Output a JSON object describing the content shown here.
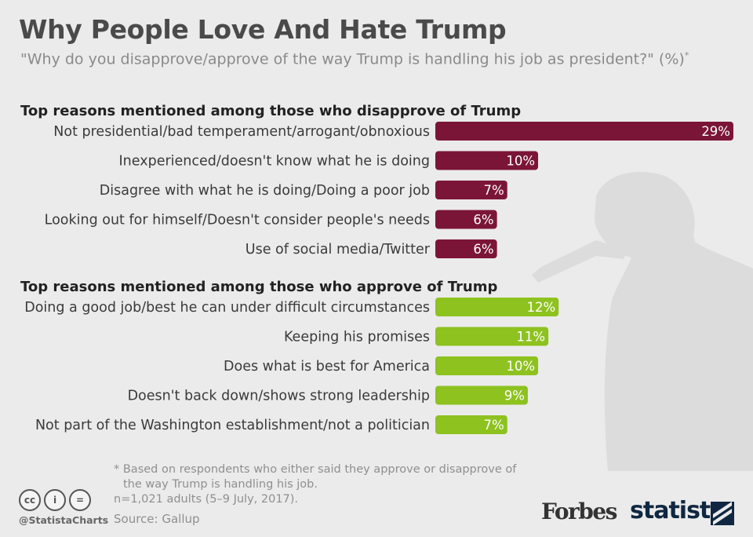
{
  "header": {
    "title": "Why People Love And Hate Trump",
    "subtitle": "\"Why do you disapprove/approve of the way Trump is handling his job as president?\" (%)",
    "subtitle_mark": "*"
  },
  "chart_data": {
    "type": "bar",
    "orientation": "horizontal",
    "unit": "%",
    "xlim": [
      0,
      29
    ],
    "grid": false,
    "groups": [
      {
        "title": "Top reasons mentioned among those who disapprove of Trump",
        "color": "#7b1538",
        "categories": [
          "Not presidential/bad temperament/arrogant/obnoxious",
          "Inexperienced/doesn't know what he is doing",
          "Disagree with what he is doing/Doing a poor job",
          "Looking out for himself/Doesn't consider people's needs",
          "Use of social media/Twitter"
        ],
        "values": [
          29,
          10,
          7,
          6,
          6
        ],
        "labels": [
          "29%",
          "10%",
          "7%",
          "6%",
          "6%"
        ]
      },
      {
        "title": "Top reasons  mentioned among those who approve of Trump",
        "color": "#8dc21f",
        "categories": [
          "Doing a good job/best he can under difficult circumstances",
          "Keeping his promises",
          "Does what is best for America",
          "Doesn't back down/shows strong leadership",
          "Not part of the Washington establishment/not a politician"
        ],
        "values": [
          12,
          11,
          10,
          9,
          7
        ],
        "labels": [
          "12%",
          "11%",
          "10%",
          "9%",
          "7%"
        ]
      }
    ]
  },
  "footnote": {
    "line1": "* Based on respondents who either said they approve or disapprove of",
    "line2": "the way Trump is handling his job.",
    "sample": "n=1,021 adults (5–9 July, 2017)."
  },
  "source": "Source: Gallup",
  "handle": "@StatistaCharts",
  "license_icons": [
    "cc",
    "i",
    "="
  ],
  "brands": {
    "forbes": "Forbes",
    "statista": "statista"
  }
}
